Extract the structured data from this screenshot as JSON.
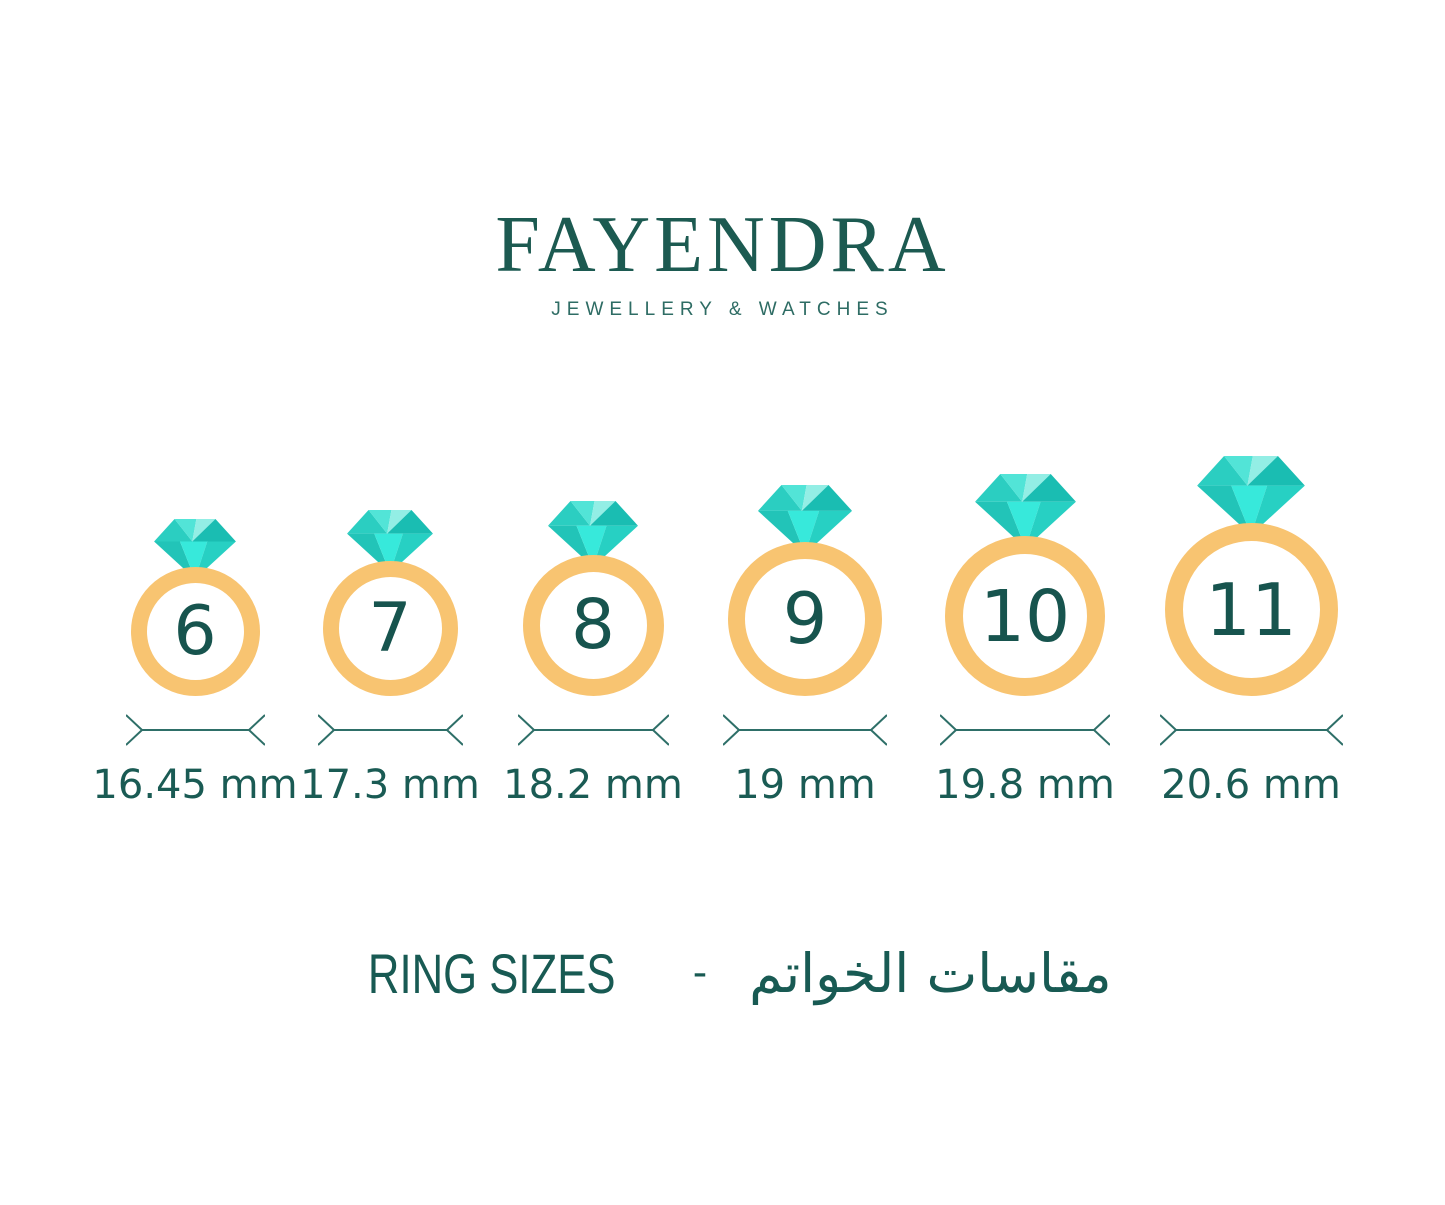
{
  "brand": {
    "name": "FAYENDRA",
    "tagline": "JEWELLERY & WATCHES"
  },
  "rings": [
    {
      "size": "6",
      "diameter": "16.45 mm"
    },
    {
      "size": "7",
      "diameter": "17.3 mm"
    },
    {
      "size": "8",
      "diameter": "18.2 mm"
    },
    {
      "size": "9",
      "diameter": "19 mm"
    },
    {
      "size": "10",
      "diameter": "19.8 mm"
    },
    {
      "size": "11",
      "diameter": "20.6 mm"
    }
  ],
  "footer": {
    "title_en": "RING SIZES",
    "separator": "-",
    "title_ar": "مقاسات الخواتم"
  },
  "colors": {
    "background": "#FFFFFF",
    "brand_teal": "#1C5A51",
    "tagline_teal": "#2E6C64",
    "number_teal": "#17544E",
    "label_teal": "#1A5B54",
    "band_orange": "#F8C471",
    "measure_line": "#2E6F68",
    "diamond_crown_facets": [
      "#2BCEC1",
      "#52E4D7",
      "#93EEE5",
      "#1ABDB2"
    ],
    "diamond_pavilion_facets": [
      "#22C4B8",
      "#37E9DB",
      "#27D0C3"
    ]
  }
}
